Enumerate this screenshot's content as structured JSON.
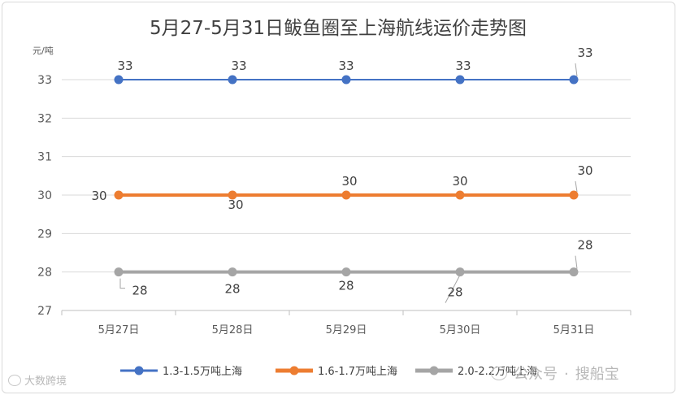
{
  "chart_data": {
    "type": "line",
    "title": "5月27-5月31日鲅鱼圈至上海航线运价走势图",
    "ylabel": "元/吨",
    "xlabel": "",
    "categories": [
      "5月27日",
      "5月28日",
      "5月29日",
      "5月30日",
      "5月31日"
    ],
    "ylim": [
      27,
      33
    ],
    "yticks": [
      "27",
      "28",
      "29",
      "30",
      "31",
      "32",
      "33"
    ],
    "grid": true,
    "legend": "bottom",
    "series": [
      {
        "name": "1.3-1.5万吨上海",
        "values": [
          33,
          33,
          33,
          33,
          33
        ],
        "color": "#4472c4"
      },
      {
        "name": "1.6-1.7万吨上海",
        "values": [
          30,
          30,
          30,
          30,
          30
        ],
        "color": "#ed7d31"
      },
      {
        "name": "2.0-2.2万吨上海",
        "values": [
          28,
          28,
          28,
          28,
          28
        ],
        "color": "#a5a5a5"
      }
    ]
  },
  "watermarks": {
    "left": "大数跨境",
    "right_prefix": "公众号",
    "right_name": "搜船宝"
  }
}
